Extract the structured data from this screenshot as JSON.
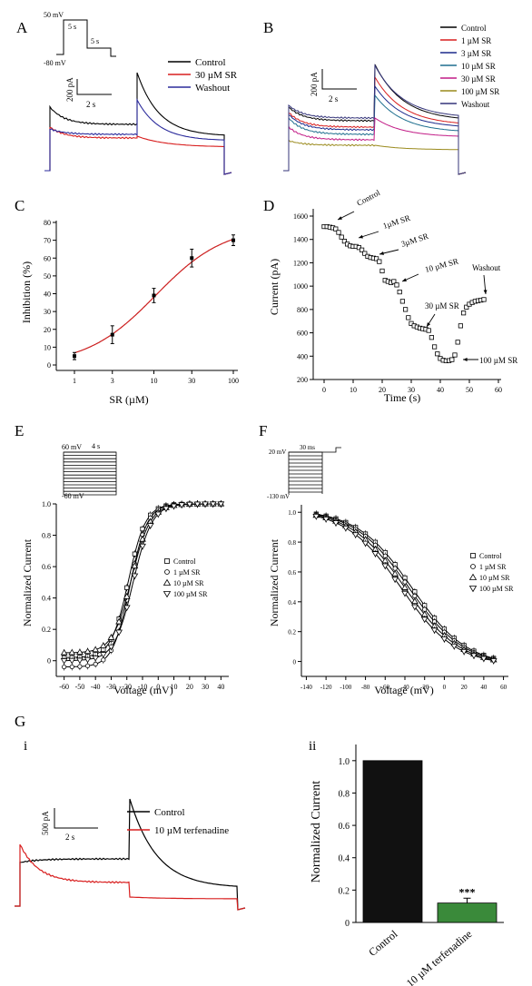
{
  "panelA": {
    "letter": "A",
    "protocol": {
      "v_high": "50 mV",
      "v_low": "-80 mV",
      "t1": "5 s",
      "t2": "5 s"
    },
    "scale": {
      "y": "200 pA",
      "x": "2 s"
    },
    "legend": [
      {
        "label": "Control",
        "color": "#000000"
      },
      {
        "label": "30 µM SR",
        "color": "#d81e1e"
      },
      {
        "label": "Washout",
        "color": "#2b2b9c"
      }
    ]
  },
  "panelB": {
    "letter": "B",
    "scale": {
      "y": "200 pA",
      "x": "2 s"
    },
    "legend": [
      {
        "label": "Control",
        "color": "#000000"
      },
      {
        "label": "1 µM SR",
        "color": "#d81e1e"
      },
      {
        "label": "3 µM SR",
        "color": "#1b2a8c"
      },
      {
        "label": "10 µM SR",
        "color": "#1f6f8f"
      },
      {
        "label": "30 µM SR",
        "color": "#c21b86"
      },
      {
        "label": "100 µM SR",
        "color": "#9a8a1c"
      },
      {
        "label": "Washout",
        "color": "#34347a"
      }
    ]
  },
  "panelC": {
    "letter": "C",
    "chart_data": {
      "type": "scatter",
      "xscale": "log",
      "x": [
        1,
        3,
        10,
        30,
        100
      ],
      "y": [
        5,
        17,
        39,
        60,
        70
      ],
      "yerr": [
        2,
        5,
        4,
        5,
        3
      ],
      "xticks": [
        "1",
        "3",
        "10",
        "30",
        "100"
      ],
      "yticks": [
        "0",
        "10",
        "20",
        "30",
        "40",
        "50",
        "60",
        "70",
        "80"
      ],
      "xlabel": "SR (µM)",
      "ylabel": "Inhibition (%)",
      "ylim": [
        0,
        80
      ],
      "fit_color": "#cc1f1f"
    }
  },
  "panelD": {
    "letter": "D",
    "chart_data": {
      "type": "scatter",
      "xlabel": "Time (s)",
      "ylabel": "Current (pA)",
      "xlim": [
        0,
        60
      ],
      "ylim": [
        200,
        1600
      ],
      "xticks": [
        "0",
        "10",
        "20",
        "30",
        "40",
        "50",
        "60"
      ],
      "yticks": [
        "200",
        "400",
        "600",
        "800",
        "1000",
        "1200",
        "1400",
        "1600"
      ],
      "x": [
        0,
        1,
        2,
        3,
        4,
        5,
        6,
        7,
        8,
        9,
        10,
        11,
        12,
        13,
        14,
        15,
        16,
        17,
        18,
        19,
        20,
        21,
        22,
        23,
        24,
        25,
        26,
        27,
        28,
        29,
        30,
        31,
        32,
        33,
        34,
        35,
        36,
        37,
        38,
        39,
        40,
        41,
        42,
        43,
        44,
        45,
        46,
        47,
        48,
        49,
        50,
        51,
        52,
        53,
        54,
        55
      ],
      "y": [
        1510,
        1510,
        1505,
        1500,
        1490,
        1460,
        1420,
        1385,
        1360,
        1345,
        1340,
        1340,
        1330,
        1310,
        1280,
        1255,
        1245,
        1240,
        1235,
        1210,
        1130,
        1050,
        1040,
        1030,
        1040,
        1010,
        950,
        870,
        800,
        730,
        680,
        660,
        650,
        640,
        635,
        630,
        620,
        560,
        480,
        420,
        380,
        365,
        360,
        362,
        370,
        410,
        520,
        660,
        770,
        820,
        845,
        860,
        870,
        875,
        880,
        885
      ],
      "annotations": [
        "Control",
        "1µM SR",
        "3µM SR",
        "10 µM SR",
        "30 µM SR",
        "Washout",
        "100 µM SR"
      ]
    }
  },
  "panelE": {
    "letter": "E",
    "protocol": {
      "v_high": "60 mV",
      "v_low": "-60 mV",
      "t": "4 s"
    },
    "chart_data": {
      "type": "line",
      "xlabel": "Voltage (mV)",
      "ylabel": "Normalized Current",
      "xlim": [
        -65,
        45
      ],
      "ylim": [
        -0.1,
        1.0
      ],
      "xticks": [
        "-60",
        "-50",
        "-40",
        "-30",
        "-20",
        "-10",
        "0",
        "10",
        "20",
        "30",
        "40"
      ],
      "yticks": [
        "0",
        "0.2",
        "0.4",
        "0.6",
        "0.8",
        "1.0"
      ],
      "x": [
        -60,
        -55,
        -50,
        -45,
        -40,
        -35,
        -30,
        -25,
        -20,
        -15,
        -10,
        -5,
        0,
        5,
        10,
        15,
        20,
        25,
        30,
        35,
        40
      ],
      "series": [
        {
          "name": "Control",
          "marker": "square",
          "v_half": -19,
          "k": 5.5,
          "offset": 0.02
        },
        {
          "name": "1 µM SR",
          "marker": "circle",
          "v_half": -18,
          "k": 5.5,
          "offset": -0.04
        },
        {
          "name": "10 µM SR",
          "marker": "triangle-up",
          "v_half": -17,
          "k": 6,
          "offset": 0.05
        },
        {
          "name": "100 µM SR",
          "marker": "triangle-down",
          "v_half": -16,
          "k": 6,
          "offset": 0.0
        }
      ]
    }
  },
  "panelF": {
    "letter": "F",
    "protocol": {
      "v_high": "20 mV",
      "v_low": "-130 mV",
      "t": "30 ms"
    },
    "chart_data": {
      "type": "line",
      "xlabel": "Voltage (mV)",
      "ylabel": "Normalized Current",
      "xlim": [
        -145,
        65
      ],
      "ylim": [
        -0.1,
        1.05
      ],
      "xticks": [
        "-140",
        "-120",
        "-100",
        "-80",
        "-60",
        "-40",
        "-20",
        "0",
        "20",
        "40",
        "60"
      ],
      "yticks": [
        "0",
        "0.2",
        "0.4",
        "0.6",
        "0.8",
        "1.0"
      ],
      "x": [
        -130,
        -120,
        -110,
        -100,
        -90,
        -80,
        -70,
        -60,
        -50,
        -40,
        -30,
        -20,
        -10,
        0,
        10,
        20,
        30,
        40,
        50
      ],
      "series": [
        {
          "name": "Control",
          "marker": "square",
          "v_half": -33,
          "k": 28
        },
        {
          "name": "1 µM SR",
          "marker": "circle",
          "v_half": -36,
          "k": 28
        },
        {
          "name": "10 µM SR",
          "marker": "triangle-up",
          "v_half": -40,
          "k": 28
        },
        {
          "name": "100 µM SR",
          "marker": "triangle-down",
          "v_half": -44,
          "k": 28
        }
      ]
    }
  },
  "panelG": {
    "letter": "G",
    "sub_i": "i",
    "sub_ii": "ii",
    "scale": {
      "y": "500 pA",
      "x": "2 s"
    },
    "legend": [
      {
        "label": "Control",
        "color": "#000000"
      },
      {
        "label": "10 µM terfenadine",
        "color": "#d81e1e"
      }
    ],
    "chart_data": {
      "type": "bar",
      "categories": [
        "Control",
        "10 µM terfenadine"
      ],
      "values": [
        1.0,
        0.12
      ],
      "errors": [
        0,
        0.03
      ],
      "colors": [
        "#111111",
        "#3a8a3a"
      ],
      "ylabel": "Normalized Current",
      "ylim": [
        0,
        1.1
      ],
      "yticks": [
        "0",
        "0.2",
        "0.4",
        "0.6",
        "0.8",
        "1.0"
      ],
      "significance": "***"
    }
  }
}
